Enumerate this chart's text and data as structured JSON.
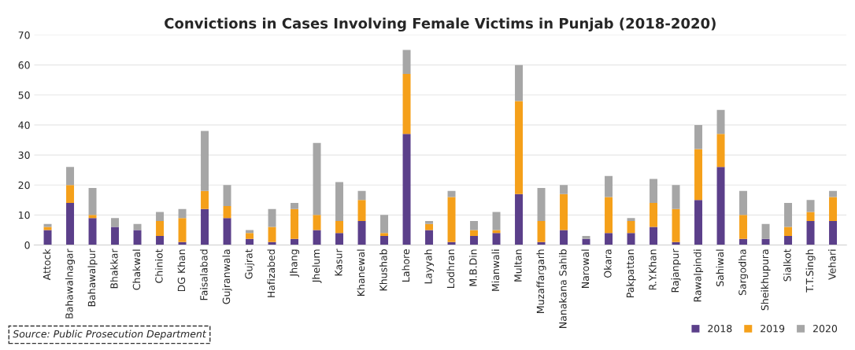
{
  "chart_data": {
    "type": "bar",
    "stacked": true,
    "title": "Convictions in Cases Involving Female Victims in Punjab (2018-2020)",
    "categories": [
      "Attock",
      "Bahawalnagar",
      "Bahawalpur",
      "Bhakkar",
      "Chakwal",
      "Chiniot",
      "DG Khan",
      "Faisalabad",
      "Gujranwala",
      "Gujrat",
      "Hafizabed",
      "Jhang",
      "Jhelum",
      "Kasur",
      "Khanewal",
      "Khushab",
      "Lahore",
      "Layyah",
      "Lodhran",
      "M.B.Din",
      "Mianwali",
      "Multan",
      "Muzaffargarh",
      "Nanakana Sahib",
      "Narowal",
      "Okara",
      "Pakpattan",
      "R.Y.Khan",
      "Rajanpur",
      "Rawalpindi",
      "Sahiwal",
      "Sargodha",
      "Sheikhupura",
      "Sialkot",
      "T.T.Singh",
      "Vehari"
    ],
    "series": [
      {
        "name": "2018",
        "color": "#5b3f8a",
        "values": [
          5,
          14,
          9,
          6,
          5,
          3,
          1,
          12,
          9,
          2,
          1,
          2,
          5,
          4,
          8,
          3,
          37,
          5,
          1,
          3,
          4,
          17,
          1,
          5,
          2,
          4,
          4,
          6,
          1,
          15,
          26,
          2,
          2,
          3,
          8,
          8
        ]
      },
      {
        "name": "2019",
        "color": "#f5a01a",
        "values": [
          1,
          6,
          1,
          0,
          0,
          5,
          8,
          6,
          4,
          2,
          5,
          10,
          5,
          4,
          7,
          1,
          20,
          2,
          15,
          2,
          1,
          31,
          7,
          12,
          0,
          12,
          4,
          8,
          11,
          17,
          11,
          8,
          0,
          3,
          3,
          8
        ]
      },
      {
        "name": "2020",
        "color": "#a6a6a6",
        "values": [
          1,
          6,
          9,
          3,
          2,
          3,
          3,
          20,
          7,
          1,
          6,
          2,
          24,
          13,
          3,
          6,
          8,
          1,
          2,
          3,
          6,
          12,
          11,
          3,
          1,
          7,
          1,
          8,
          8,
          8,
          8,
          8,
          5,
          8,
          4,
          2
        ]
      }
    ],
    "ylim": [
      0,
      70
    ],
    "yticks": [
      0,
      10,
      20,
      30,
      40,
      50,
      60,
      70
    ],
    "grid": "y",
    "legend": "bottom right",
    "annotations": [
      "Source: Public Prosecution Department"
    ]
  }
}
